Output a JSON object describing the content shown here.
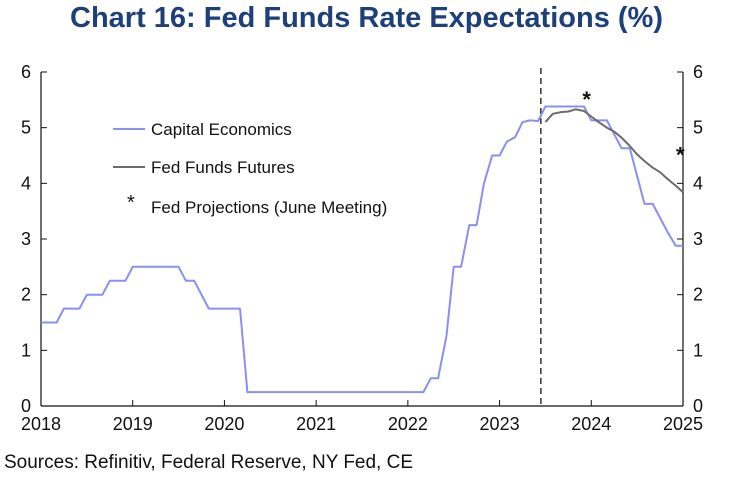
{
  "title": "Chart 16: Fed Funds Rate Expectations (%)",
  "source": "Sources: Refinitiv, Federal Reserve, NY Fed, CE",
  "colors": {
    "capital_economics": "#8a8ff0",
    "fed_funds_futures": "#6b6b6b",
    "axis": "#111111",
    "divider": "#333333",
    "title": "#1d3f7a"
  },
  "chart_data": {
    "type": "line",
    "title": "Chart 16: Fed Funds Rate Expectations (%)",
    "xlim": [
      2018,
      2025
    ],
    "ylim": [
      0,
      6
    ],
    "x_ticks": [
      "2018",
      "2019",
      "2020",
      "2021",
      "2022",
      "2023",
      "2024",
      "2025"
    ],
    "y_ticks_left": [
      "0",
      "1",
      "2",
      "3",
      "4",
      "5",
      "6"
    ],
    "y_ticks_right": [
      "0",
      "1",
      "2",
      "3",
      "4",
      "5",
      "6"
    ],
    "grid": false,
    "legend_position": "upper-left",
    "divider_x": 2023.45,
    "series": [
      {
        "name": "Capital Economics",
        "color": "#8a8ff0",
        "x": [
          2018.0,
          2018.17,
          2018.25,
          2018.42,
          2018.5,
          2018.67,
          2018.75,
          2018.92,
          2019.0,
          2019.5,
          2019.58,
          2019.67,
          2019.83,
          2020.17,
          2020.25,
          2022.17,
          2022.25,
          2022.33,
          2022.42,
          2022.5,
          2022.58,
          2022.67,
          2022.75,
          2022.83,
          2022.92,
          2023.0,
          2023.08,
          2023.17,
          2023.25,
          2023.33,
          2023.42,
          2023.5,
          2023.58,
          2023.92,
          2024.0,
          2024.17,
          2024.33,
          2024.42,
          2024.58,
          2024.67,
          2024.83,
          2024.92,
          2025.0
        ],
        "y": [
          1.5,
          1.5,
          1.75,
          1.75,
          2.0,
          2.0,
          2.25,
          2.25,
          2.5,
          2.5,
          2.25,
          2.25,
          1.75,
          1.75,
          0.25,
          0.25,
          0.5,
          0.5,
          1.25,
          2.5,
          2.5,
          3.25,
          3.25,
          4.0,
          4.5,
          4.5,
          4.75,
          4.83,
          5.1,
          5.13,
          5.12,
          5.38,
          5.38,
          5.38,
          5.13,
          5.13,
          4.63,
          4.63,
          3.63,
          3.63,
          3.13,
          2.88,
          2.88
        ]
      },
      {
        "name": "Fed Funds Futures",
        "color": "#6b6b6b",
        "x": [
          2023.5,
          2023.58,
          2023.67,
          2023.75,
          2023.83,
          2023.92,
          2024.0,
          2024.08,
          2024.17,
          2024.25,
          2024.33,
          2024.42,
          2024.5,
          2024.58,
          2024.67,
          2024.75,
          2024.83,
          2024.92,
          2025.0
        ],
        "y": [
          5.1,
          5.25,
          5.28,
          5.29,
          5.33,
          5.3,
          5.2,
          5.1,
          5.0,
          4.93,
          4.82,
          4.67,
          4.52,
          4.4,
          4.28,
          4.2,
          4.08,
          3.96,
          3.84
        ]
      },
      {
        "name": "Fed Projections (June Meeting)",
        "marker": "*",
        "x": [
          2023.95,
          2024.97
        ],
        "y": [
          5.55,
          4.55
        ]
      }
    ]
  }
}
